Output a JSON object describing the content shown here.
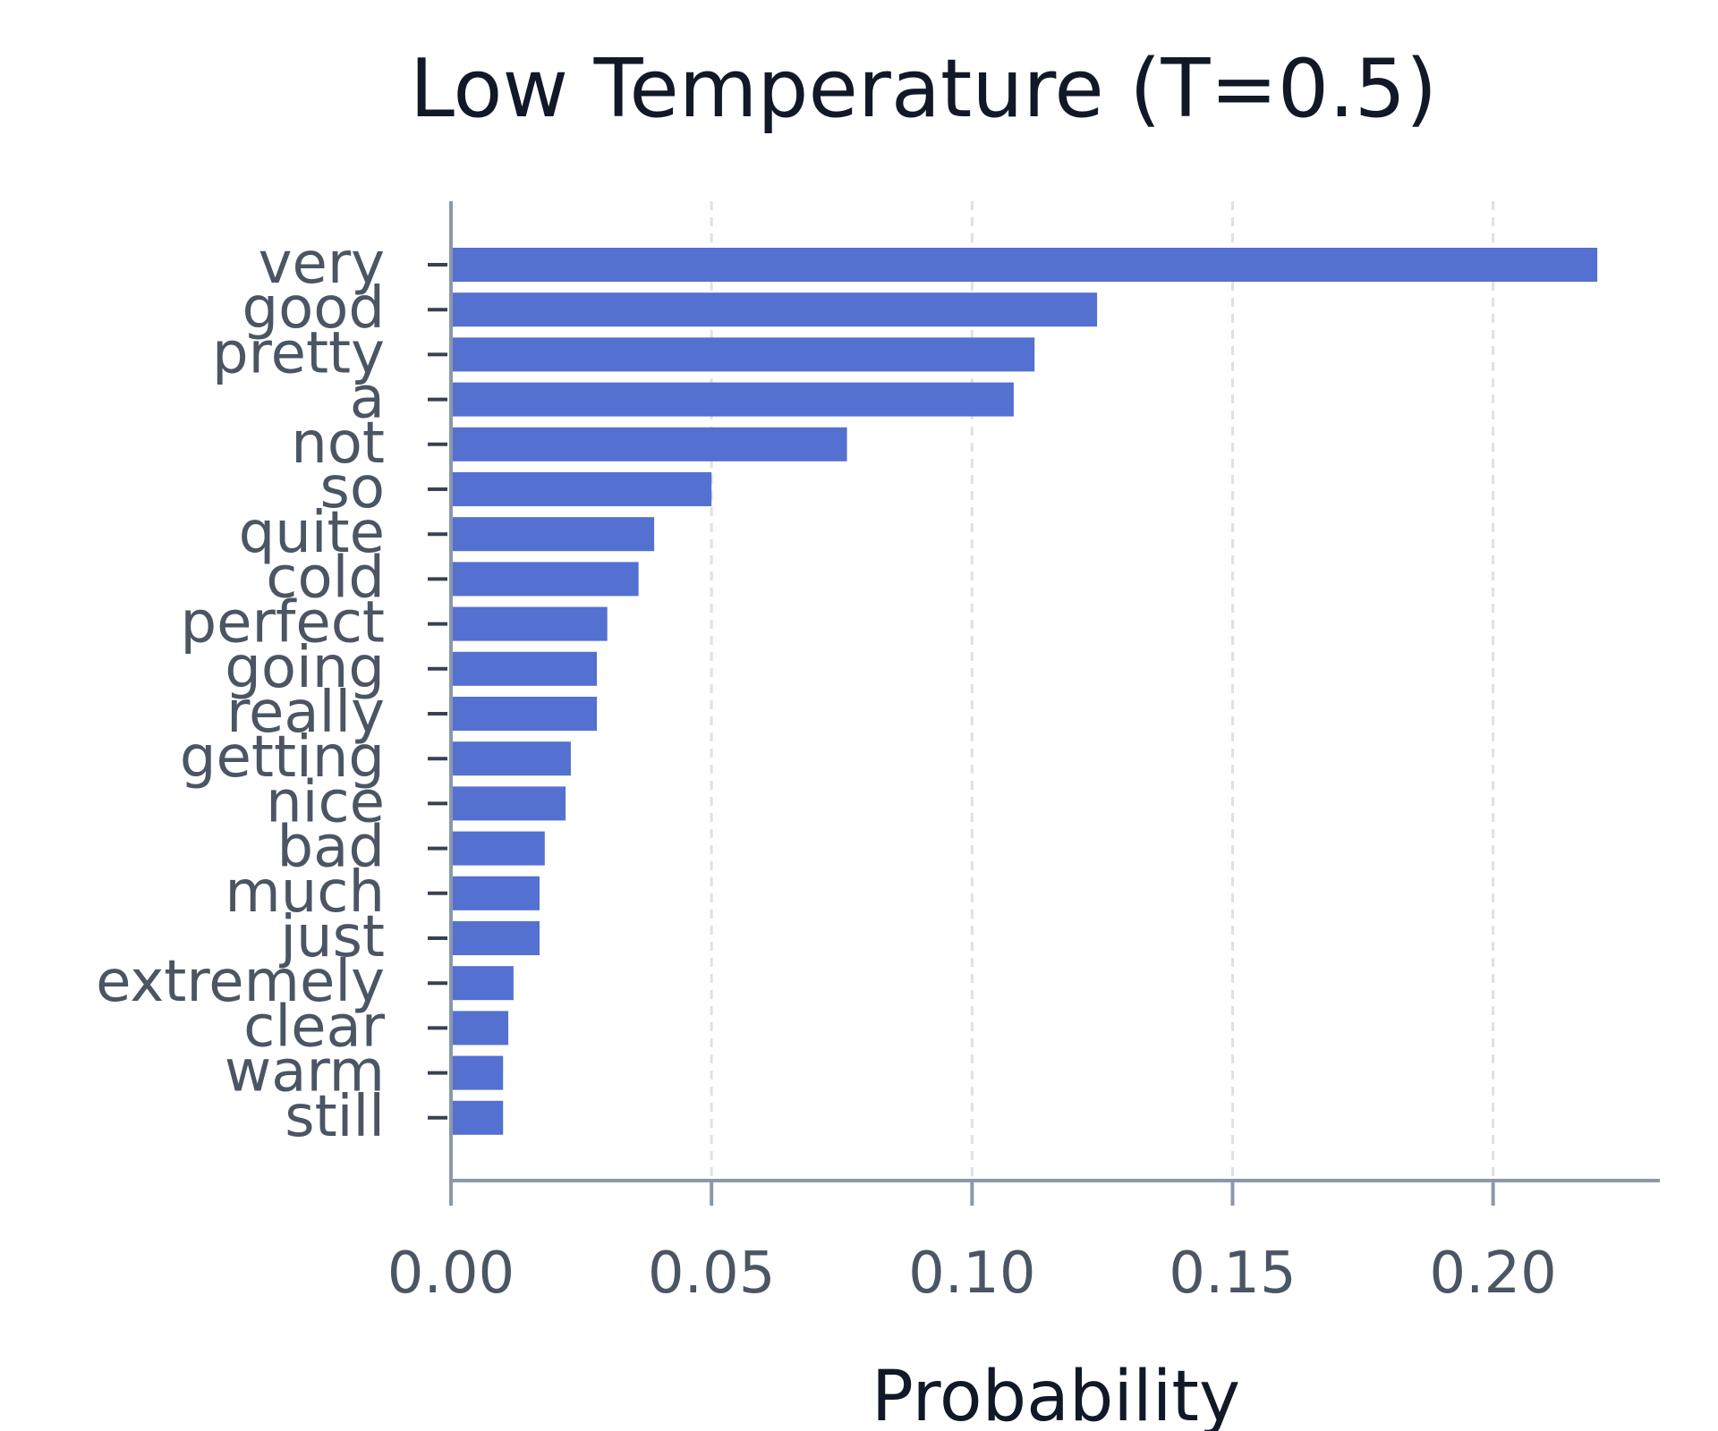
{
  "chart_data": {
    "type": "bar",
    "orientation": "horizontal",
    "title": "Low Temperature (T=0.5)",
    "xlabel": "Probability",
    "ylabel": "",
    "categories": [
      "very",
      "good",
      "pretty",
      "a",
      "not",
      "so",
      "quite",
      "cold",
      "perfect",
      "going",
      "really",
      "getting",
      "nice",
      "bad",
      "much",
      "just",
      "extremely",
      "clear",
      "warm",
      "still"
    ],
    "values": [
      0.22,
      0.124,
      0.112,
      0.108,
      0.076,
      0.05,
      0.039,
      0.036,
      0.03,
      0.028,
      0.028,
      0.023,
      0.022,
      0.018,
      0.017,
      0.017,
      0.012,
      0.011,
      0.01,
      0.01
    ],
    "xlim": [
      0,
      0.232
    ],
    "xticks": [
      0,
      0.05,
      0.1,
      0.15,
      0.2
    ],
    "xtick_labels": [
      "0.00",
      "0.05",
      "0.10",
      "0.15",
      "0.20"
    ],
    "grid": true,
    "colors": {
      "bar": "#5470d0",
      "axis": "#8b98ab",
      "grid": "#dde1e7",
      "tick_text": "#4b5563",
      "title_text": "#111827"
    }
  }
}
